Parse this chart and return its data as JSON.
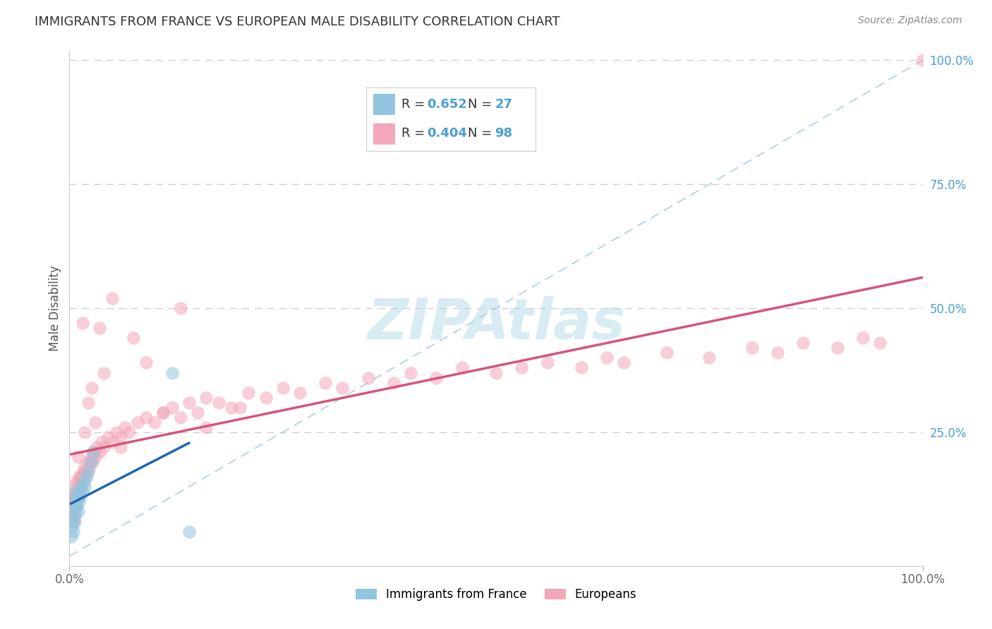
{
  "title": "IMMIGRANTS FROM FRANCE VS EUROPEAN MALE DISABILITY CORRELATION CHART",
  "source": "Source: ZipAtlas.com",
  "ylabel": "Male Disability",
  "xlim": [
    0,
    1
  ],
  "ylim": [
    -0.02,
    1.02
  ],
  "ytick_right_labels": [
    "100.0%",
    "75.0%",
    "50.0%",
    "25.0%"
  ],
  "ytick_right_values": [
    1.0,
    0.75,
    0.5,
    0.25
  ],
  "color_france": "#92c5de",
  "color_european": "#f4a7b9",
  "color_france_line": "#2166ac",
  "color_european_line": "#d6547a",
  "color_dashed": "#b0cfe0",
  "watermark_color": "#c8e4f0",
  "france_x": [
    0.002,
    0.003,
    0.004,
    0.005,
    0.005,
    0.006,
    0.006,
    0.007,
    0.007,
    0.008,
    0.008,
    0.009,
    0.01,
    0.01,
    0.011,
    0.012,
    0.013,
    0.014,
    0.015,
    0.016,
    0.018,
    0.02,
    0.022,
    0.025,
    0.028,
    0.12,
    0.14
  ],
  "france_y": [
    0.04,
    0.06,
    0.07,
    0.05,
    0.08,
    0.1,
    0.07,
    0.09,
    0.12,
    0.11,
    0.13,
    0.1,
    0.12,
    0.09,
    0.11,
    0.13,
    0.12,
    0.14,
    0.13,
    0.15,
    0.14,
    0.16,
    0.17,
    0.19,
    0.21,
    0.37,
    0.05
  ],
  "european_x": [
    0.002,
    0.003,
    0.004,
    0.004,
    0.005,
    0.005,
    0.006,
    0.006,
    0.007,
    0.007,
    0.008,
    0.008,
    0.009,
    0.01,
    0.01,
    0.011,
    0.012,
    0.012,
    0.013,
    0.014,
    0.015,
    0.016,
    0.017,
    0.018,
    0.019,
    0.02,
    0.022,
    0.024,
    0.025,
    0.027,
    0.028,
    0.03,
    0.032,
    0.035,
    0.038,
    0.04,
    0.045,
    0.05,
    0.055,
    0.06,
    0.065,
    0.07,
    0.08,
    0.09,
    0.1,
    0.11,
    0.12,
    0.13,
    0.14,
    0.15,
    0.16,
    0.175,
    0.19,
    0.21,
    0.23,
    0.25,
    0.27,
    0.3,
    0.32,
    0.35,
    0.38,
    0.4,
    0.43,
    0.46,
    0.5,
    0.53,
    0.56,
    0.6,
    0.63,
    0.65,
    0.7,
    0.75,
    0.8,
    0.83,
    0.86,
    0.9,
    0.93,
    0.95,
    0.006,
    0.008,
    0.01,
    0.012,
    0.015,
    0.018,
    0.022,
    0.026,
    0.03,
    0.035,
    0.04,
    0.05,
    0.06,
    0.075,
    0.09,
    0.11,
    0.13,
    0.16,
    0.2,
    1.0
  ],
  "european_y": [
    0.1,
    0.09,
    0.08,
    0.12,
    0.07,
    0.11,
    0.09,
    0.13,
    0.1,
    0.12,
    0.11,
    0.14,
    0.13,
    0.12,
    0.15,
    0.14,
    0.13,
    0.16,
    0.15,
    0.14,
    0.16,
    0.17,
    0.15,
    0.18,
    0.16,
    0.17,
    0.19,
    0.18,
    0.2,
    0.19,
    0.21,
    0.2,
    0.22,
    0.21,
    0.23,
    0.22,
    0.24,
    0.23,
    0.25,
    0.24,
    0.26,
    0.25,
    0.27,
    0.28,
    0.27,
    0.29,
    0.3,
    0.28,
    0.31,
    0.29,
    0.32,
    0.31,
    0.3,
    0.33,
    0.32,
    0.34,
    0.33,
    0.35,
    0.34,
    0.36,
    0.35,
    0.37,
    0.36,
    0.38,
    0.37,
    0.38,
    0.39,
    0.38,
    0.4,
    0.39,
    0.41,
    0.4,
    0.42,
    0.41,
    0.43,
    0.42,
    0.44,
    0.43,
    0.08,
    0.15,
    0.2,
    0.16,
    0.47,
    0.25,
    0.31,
    0.34,
    0.27,
    0.46,
    0.37,
    0.52,
    0.22,
    0.44,
    0.39,
    0.29,
    0.5,
    0.26,
    0.3,
    1.0
  ]
}
